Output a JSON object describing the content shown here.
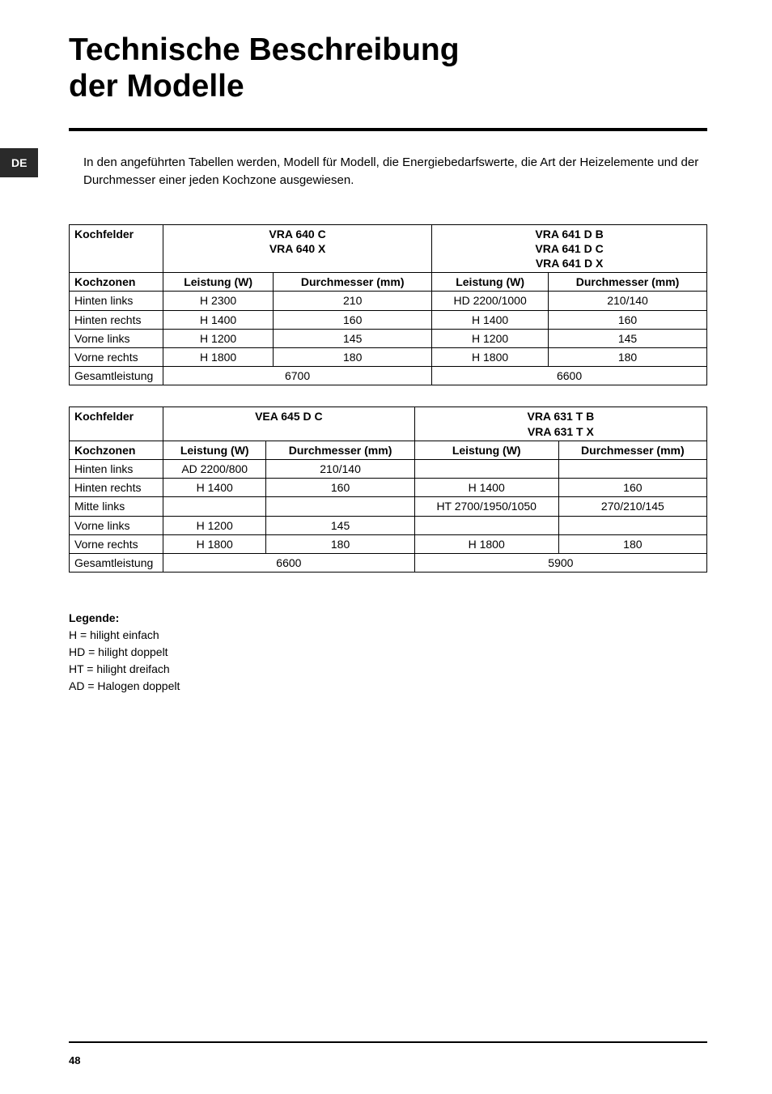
{
  "lang_badge": "DE",
  "title_line1": "Technische Beschreibung",
  "title_line2": "der Modelle",
  "intro": "In den angeführten Tabellen werden, Modell für Modell, die Energiebedarfswerte, die Art der Heizelemente und der Durchmesser einer jeden Kochzone ausgewiesen.",
  "headers": {
    "kochfelder": "Kochfelder",
    "kochzonen": "Kochzonen",
    "leistung": "Leistung (W)",
    "durchmesser": "Durchmesser (mm)"
  },
  "table1": {
    "model_a": [
      "VRA 640 C",
      "VRA 640 X"
    ],
    "model_b": [
      "VRA 641 D B",
      "VRA 641 D C",
      "VRA 641 D X"
    ],
    "rows": [
      {
        "zone": "Hinten links",
        "a_power": "H 2300",
        "a_diam": "210",
        "b_power": "HD 2200/1000",
        "b_diam": "210/140"
      },
      {
        "zone": "Hinten rechts",
        "a_power": "H 1400",
        "a_diam": "160",
        "b_power": "H 1400",
        "b_diam": "160"
      },
      {
        "zone": "Vorne links",
        "a_power": "H 1200",
        "a_diam": "145",
        "b_power": "H 1200",
        "b_diam": "145"
      },
      {
        "zone": "Vorne rechts",
        "a_power": "H 1800",
        "a_diam": "180",
        "b_power": "H 1800",
        "b_diam": "180"
      }
    ],
    "total_label": "Gesamtleistung",
    "total_a": "6700",
    "total_b": "6600"
  },
  "table2": {
    "model_a": [
      "VEA 645 D C"
    ],
    "model_b": [
      "VRA 631 T B",
      "VRA 631 T X"
    ],
    "rows": [
      {
        "zone": "Hinten links",
        "a_power": "AD 2200/800",
        "a_diam": "210/140",
        "b_power": "",
        "b_diam": ""
      },
      {
        "zone": "Hinten rechts",
        "a_power": "H 1400",
        "a_diam": "160",
        "b_power": "H 1400",
        "b_diam": "160"
      },
      {
        "zone": "Mitte links",
        "a_power": "",
        "a_diam": "",
        "b_power": "HT 2700/1950/1050",
        "b_diam": "270/210/145"
      },
      {
        "zone": "Vorne links",
        "a_power": "H 1200",
        "a_diam": "145",
        "b_power": "",
        "b_diam": ""
      },
      {
        "zone": "Vorne rechts",
        "a_power": "H 1800",
        "a_diam": "180",
        "b_power": "H 1800",
        "b_diam": "180"
      }
    ],
    "total_label": "Gesamtleistung",
    "total_a": "6600",
    "total_b": "5900"
  },
  "legend": {
    "title": "Legende:",
    "items": [
      "H = hilight einfach",
      "HD = hilight doppelt",
      "HT = hilight dreifach",
      "AD = Halogen doppelt"
    ]
  },
  "page_number": "48",
  "colors": {
    "background": "#ffffff",
    "text": "#000000",
    "badge_bg": "#2a2a2a",
    "badge_fg": "#ffffff"
  },
  "typography": {
    "title_fontsize": 39,
    "body_fontsize": 15,
    "table_fontsize": 14,
    "legend_fontsize": 14,
    "pagenum_fontsize": 13
  }
}
